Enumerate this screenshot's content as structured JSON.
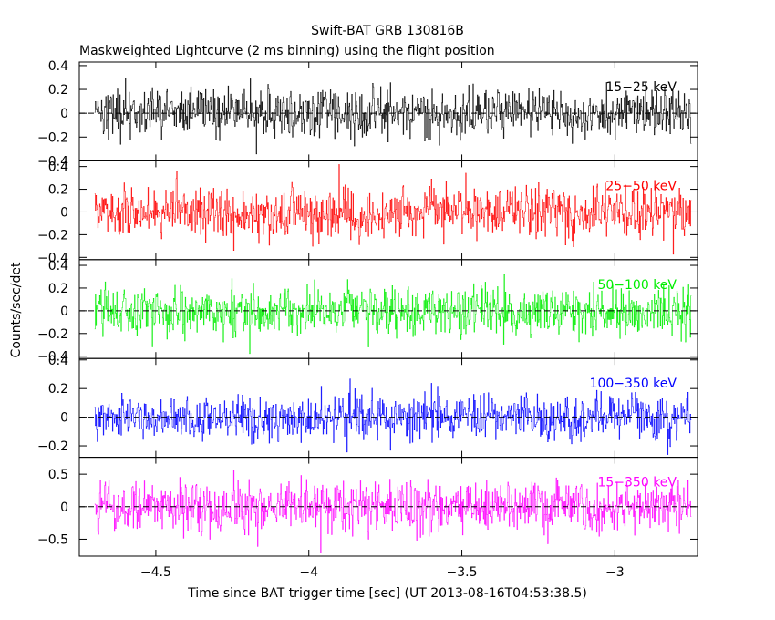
{
  "chart_data": {
    "type": "line",
    "title": "Swift-BAT GRB 130816B",
    "subtitle": "Maskweighted Lightcurve (2 ms binning) using the flight position",
    "xlabel": "Time since BAT trigger time [sec] (UT 2013-08-16T04:53:38.5)",
    "ylabel": "Counts/sec/det",
    "xlim": [
      -4.75,
      -2.73
    ],
    "xticks": [
      -4.5,
      -4,
      -3.5,
      -3
    ],
    "xticklabels": [
      "−4.5",
      "−4",
      "−3.5",
      "−3"
    ],
    "data_x_range": [
      -4.7,
      -2.75
    ],
    "grid": false,
    "zero_line": "dashed",
    "panels": [
      {
        "name": "15-25 keV",
        "label": "15−25 keV",
        "color": "#000000",
        "ylim": [
          -0.4,
          0.43
        ],
        "yticks": [
          -0.4,
          -0.2,
          0,
          0.2,
          0.4
        ],
        "yticklabels": [
          "−0.4",
          "−0.2",
          "0",
          "0.2",
          "0.4"
        ],
        "amplitude": 0.1
      },
      {
        "name": "25-50 keV",
        "label": "25−50 keV",
        "color": "#ff0000",
        "ylim": [
          -0.42,
          0.45
        ],
        "yticks": [
          -0.4,
          -0.2,
          0,
          0.2,
          0.4
        ],
        "yticklabels": [
          "−0.4",
          "−0.2",
          "0",
          "0.2",
          "0.4"
        ],
        "amplitude": 0.11
      },
      {
        "name": "50-100 keV",
        "label": "50−100 keV",
        "color": "#00ee00",
        "ylim": [
          -0.42,
          0.45
        ],
        "yticks": [
          -0.4,
          -0.2,
          0,
          0.2,
          0.4
        ],
        "yticklabels": [
          "−0.4",
          "−0.2",
          "0",
          "0.2",
          "0.4"
        ],
        "amplitude": 0.11
      },
      {
        "name": "100-350 keV",
        "label": "100−350 keV",
        "color": "#0000ff",
        "ylim": [
          -0.28,
          0.41
        ],
        "yticks": [
          -0.2,
          0,
          0.2,
          0.4
        ],
        "yticklabels": [
          "−0.2",
          "0",
          "0.2",
          "0.4"
        ],
        "amplitude": 0.08
      },
      {
        "name": "15-350 keV",
        "label": "15−350 keV",
        "color": "#ff00ff",
        "ylim": [
          -0.76,
          0.76
        ],
        "yticks": [
          -0.5,
          0,
          0.5
        ],
        "yticklabels": [
          "−0.5",
          "0",
          "0.5"
        ],
        "amplitude": 0.2
      }
    ]
  }
}
